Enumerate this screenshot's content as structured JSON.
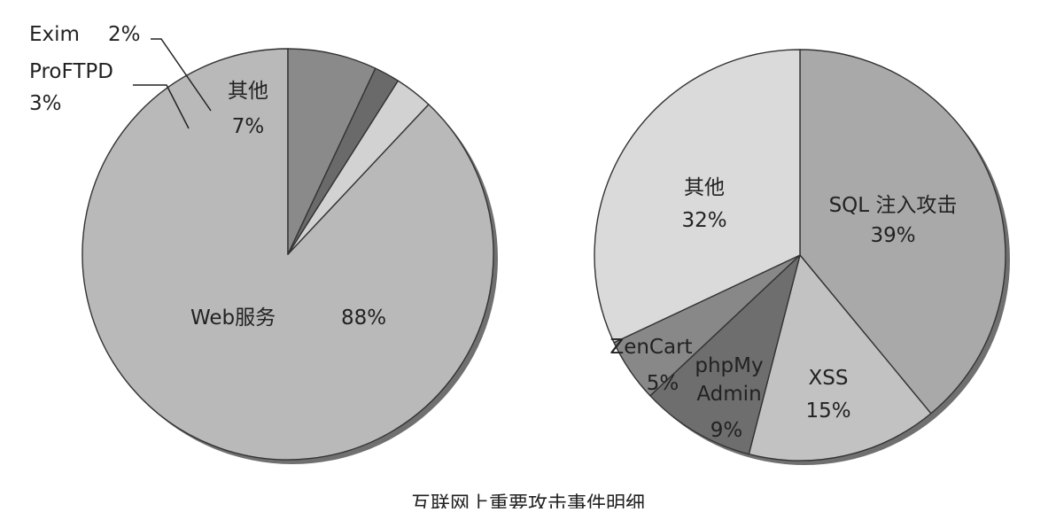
{
  "caption": "互联网上重要攻击事件明细",
  "chart_data": [
    {
      "type": "pie",
      "slices": [
        {
          "label": "Web服务",
          "value": 88,
          "pct": "88%",
          "color": "#b9b9b9"
        },
        {
          "label": "ProFTPD",
          "value": 3,
          "pct": "3%",
          "color": "#d2d2d2"
        },
        {
          "label": "Exim",
          "value": 2,
          "pct": "2%",
          "color": "#6a6a6a"
        },
        {
          "label": "其他",
          "value": 7,
          "pct": "7%",
          "color": "#8a8a8a"
        }
      ]
    },
    {
      "type": "pie",
      "slices": [
        {
          "label": "SQL 注入攻击",
          "value": 39,
          "pct": "39%",
          "color": "#a9a9a9"
        },
        {
          "label": "XSS",
          "value": 15,
          "pct": "15%",
          "color": "#c2c2c2"
        },
        {
          "label": "phpMy\nAdmin",
          "value": 9,
          "pct": "9%",
          "color": "#6e6e6e"
        },
        {
          "label": "ZenCart",
          "value": 5,
          "pct": "5%",
          "color": "#888888"
        },
        {
          "label": "其他",
          "value": 32,
          "pct": "32%",
          "color": "#dadada"
        }
      ]
    }
  ]
}
